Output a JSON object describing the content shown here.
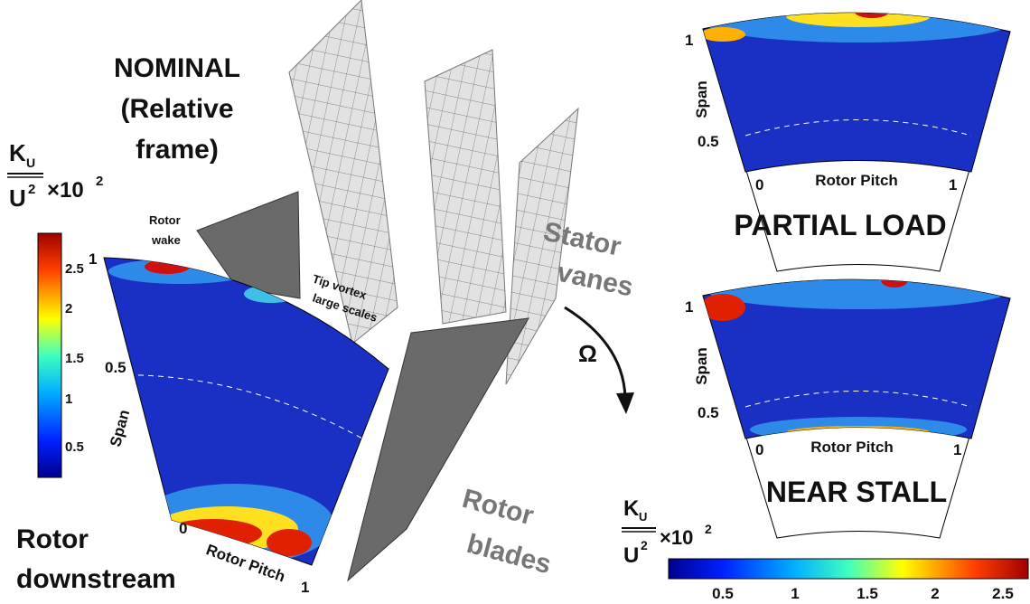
{
  "title": {
    "line1": "NOMINAL",
    "line2": "(Relative",
    "line3": "frame)"
  },
  "labels": {
    "rotor_downstream": [
      "Rotor",
      "downstream"
    ],
    "rotor_wake": [
      "Rotor",
      "wake"
    ],
    "tip_vortex": [
      "Tip vortex",
      "large scales"
    ],
    "stator_vanes": [
      "Stator",
      "vanes"
    ],
    "rotor_blades": [
      "Rotor",
      "blades"
    ],
    "omega": "Ω"
  },
  "panels": [
    {
      "title": "NOMINAL",
      "axis_x": "Rotor Pitch",
      "axis_y": "Span",
      "y_ticks": [
        1,
        0.5
      ],
      "x_ticks": [
        0,
        1
      ]
    },
    {
      "title": "PARTIAL LOAD",
      "axis_x": "Rotor Pitch",
      "axis_y": "Span",
      "y_ticks": [
        1,
        0.5
      ],
      "x_ticks": [
        0,
        1
      ]
    },
    {
      "title": "NEAR STALL",
      "axis_x": "Rotor Pitch",
      "axis_y": "Span",
      "y_ticks": [
        1,
        0.5
      ],
      "x_ticks": [
        0,
        1
      ]
    }
  ],
  "colorbar_left": {
    "numerator": "K",
    "subscript": "U",
    "denominator": "U",
    "power": "2",
    "factor": "×10",
    "factor_power": "2",
    "ticks": [
      2.5,
      2,
      1.5,
      1,
      0.5
    ]
  },
  "colorbar_bottom": {
    "numerator": "K",
    "subscript": "U",
    "denominator": "U",
    "power": "2",
    "factor": "×10",
    "factor_power": "2",
    "ticks": [
      0.5,
      1,
      1.5,
      2,
      2.5
    ]
  }
}
